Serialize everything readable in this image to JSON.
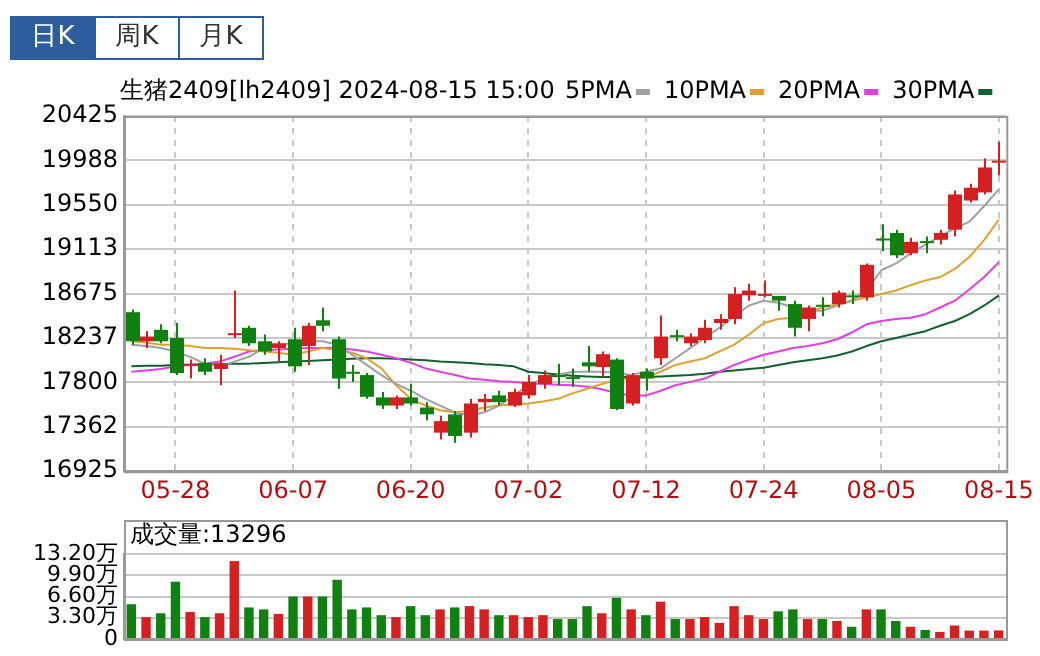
{
  "chart_data": [
    {
      "type": "candlestick",
      "title": "生猪2409[lh2409] 2024-08-15 15:00",
      "annotations": [
        "日K",
        "周K",
        "月K"
      ],
      "categories": [
        null,
        null,
        null,
        "05-28",
        null,
        null,
        null,
        null,
        null,
        null,
        null,
        "06-07",
        null,
        null,
        null,
        null,
        null,
        null,
        null,
        "06-20",
        null,
        null,
        null,
        null,
        null,
        null,
        null,
        "07-02",
        null,
        null,
        null,
        null,
        null,
        null,
        null,
        "07-12",
        null,
        null,
        null,
        null,
        null,
        null,
        null,
        "07-24",
        null,
        null,
        null,
        null,
        null,
        null,
        null,
        "08-05",
        null,
        null,
        null,
        null,
        null,
        null,
        null,
        "08-15"
      ],
      "ohlc": [
        [
          18492,
          18518,
          18172,
          18205
        ],
        [
          18205,
          18305,
          18138,
          18252
        ],
        [
          18318,
          18372,
          18185,
          18205
        ],
        [
          18238,
          18385,
          17872,
          17892
        ],
        [
          17965,
          18025,
          17838,
          17985
        ],
        [
          17992,
          18038,
          17872,
          17905
        ],
        [
          17932,
          18072,
          17772,
          17985
        ],
        [
          18272,
          18705,
          18238,
          18285
        ],
        [
          18338,
          18358,
          18158,
          18185
        ],
        [
          18205,
          18272,
          18072,
          18105
        ],
        [
          18138,
          18205,
          18005,
          18185
        ],
        [
          18225,
          18338,
          17905,
          17958
        ],
        [
          18158,
          18385,
          17972,
          18358
        ],
        [
          18412,
          18538,
          18305,
          18358
        ],
        [
          18225,
          18252,
          17738,
          17838
        ],
        [
          17905,
          17972,
          17805,
          17892
        ],
        [
          17872,
          17892,
          17638,
          17658
        ],
        [
          17652,
          17705,
          17538,
          17572
        ],
        [
          17572,
          17672,
          17538,
          17652
        ],
        [
          17652,
          17785,
          17572,
          17592
        ],
        [
          17552,
          17605,
          17425,
          17485
        ],
        [
          17305,
          17472,
          17238,
          17418
        ],
        [
          17485,
          17518,
          17205,
          17272
        ],
        [
          17305,
          17638,
          17258,
          17592
        ],
        [
          17605,
          17685,
          17518,
          17638
        ],
        [
          17672,
          17718,
          17572,
          17605
        ],
        [
          17572,
          17738,
          17558,
          17705
        ],
        [
          17672,
          17872,
          17638,
          17805
        ],
        [
          17785,
          17918,
          17738,
          17872
        ],
        [
          17872,
          17985,
          17772,
          17865
        ],
        [
          17852,
          17938,
          17758,
          17845
        ],
        [
          17998,
          18158,
          17905,
          17958
        ],
        [
          17952,
          18105,
          17852,
          18078
        ],
        [
          18025,
          18038,
          17525,
          17538
        ],
        [
          17592,
          17892,
          17572,
          17872
        ],
        [
          17905,
          17938,
          17718,
          17838
        ],
        [
          18038,
          18458,
          17972,
          18252
        ],
        [
          18265,
          18318,
          18205,
          18258
        ],
        [
          18185,
          18285,
          18158,
          18252
        ],
        [
          18218,
          18418,
          18185,
          18338
        ],
        [
          18385,
          18472,
          18318,
          18425
        ],
        [
          18425,
          18738,
          18372,
          18672
        ],
        [
          18658,
          18772,
          18605,
          18705
        ],
        [
          18665,
          18805,
          18638,
          18672
        ],
        [
          18652,
          18652,
          18505,
          18605
        ],
        [
          18572,
          18605,
          18252,
          18338
        ],
        [
          18425,
          18558,
          18305,
          18538
        ],
        [
          18565,
          18638,
          18452,
          18558
        ],
        [
          18572,
          18705,
          18538,
          18685
        ],
        [
          18658,
          18705,
          18572,
          18652
        ],
        [
          18638,
          18972,
          18605,
          18958
        ],
        [
          19218,
          19358,
          19092,
          19205
        ],
        [
          19272,
          19305,
          19025,
          19052
        ],
        [
          19072,
          19225,
          19052,
          19185
        ],
        [
          19192,
          19238,
          19072,
          19185
        ],
        [
          19205,
          19305,
          19158,
          19272
        ],
        [
          19305,
          19692,
          19238,
          19652
        ],
        [
          19592,
          19758,
          19572,
          19718
        ],
        [
          19672,
          20005,
          19652,
          19918
        ],
        [
          19972,
          20172,
          19838,
          19985
        ]
      ],
      "colors": [
        "#108010",
        "#d42020",
        "#108010",
        "#108010",
        "#d42020",
        "#108010",
        "#d42020",
        "#d42020",
        "#108010",
        "#108010",
        "#d42020",
        "#108010",
        "#d42020",
        "#108010",
        "#108010",
        "#108010",
        "#108010",
        "#108010",
        "#d42020",
        "#108010",
        "#108010",
        "#d42020",
        "#108010",
        "#d42020",
        "#d42020",
        "#108010",
        "#d42020",
        "#d42020",
        "#d42020",
        "#108010",
        "#108010",
        "#108010",
        "#d42020",
        "#108010",
        "#d42020",
        "#108010",
        "#d42020",
        "#108010",
        "#d42020",
        "#d42020",
        "#d42020",
        "#d42020",
        "#d42020",
        "#d42020",
        "#108010",
        "#108010",
        "#d42020",
        "#108010",
        "#d42020",
        "#108010",
        "#d42020",
        "#108010",
        "#108010",
        "#d42020",
        "#108010",
        "#d42020",
        "#d42020",
        "#d42020",
        "#d42020",
        "#d42020"
      ],
      "series": [
        {
          "name": "5PMA",
          "type": "line",
          "color": "#a0a0a0",
          "values": [
            18172,
            18158,
            18138,
            18105,
            18052,
            17985,
            17958,
            18005,
            18052,
            18138,
            18172,
            18185,
            18205,
            18205,
            18172,
            18072,
            17972,
            17872,
            17785,
            17718,
            17638,
            17572,
            17505,
            17472,
            17505,
            17572,
            17672,
            17772,
            17838,
            17872,
            17905,
            17905,
            17905,
            17892,
            17872,
            17905,
            17938,
            18038,
            18138,
            18238,
            18338,
            18452,
            18558,
            18605,
            18585,
            18538,
            18505,
            18505,
            18558,
            18605,
            18705,
            18905,
            18972,
            19072,
            19158,
            19238,
            19318,
            19385,
            19538,
            19705
          ]
        },
        {
          "name": "10PMA",
          "type": "line",
          "color": "#e0a030",
          "values": [
            18205,
            18192,
            18172,
            18172,
            18158,
            18138,
            18138,
            18132,
            18118,
            18105,
            18092,
            18072,
            18105,
            18138,
            18118,
            18092,
            18038,
            17938,
            17772,
            17638,
            17572,
            17525,
            17505,
            17518,
            17552,
            17572,
            17585,
            17592,
            17612,
            17638,
            17692,
            17738,
            17785,
            17825,
            17838,
            17852,
            17905,
            17972,
            18005,
            18038,
            18105,
            18172,
            18272,
            18385,
            18425,
            18438,
            18492,
            18538,
            18572,
            18605,
            18638,
            18672,
            18705,
            18758,
            18805,
            18838,
            18918,
            19038,
            19205,
            19405
          ]
        },
        {
          "name": "20PMA",
          "type": "line",
          "color": "#e040e0",
          "values": [
            17905,
            17918,
            17932,
            17958,
            17972,
            17985,
            18005,
            18052,
            18105,
            18118,
            18125,
            18132,
            18138,
            18138,
            18138,
            18125,
            18105,
            18072,
            18038,
            17992,
            17938,
            17905,
            17872,
            17838,
            17825,
            17812,
            17805,
            17792,
            17785,
            17778,
            17772,
            17758,
            17732,
            17692,
            17672,
            17672,
            17718,
            17772,
            17805,
            17838,
            17905,
            17972,
            18025,
            18072,
            18105,
            18138,
            18158,
            18185,
            18225,
            18292,
            18372,
            18405,
            18425,
            18438,
            18472,
            18538,
            18605,
            18718,
            18838,
            18985
          ]
        },
        {
          "name": "30PMA",
          "type": "line",
          "color": "#106030",
          "values": [
            17958,
            17965,
            17965,
            17972,
            17972,
            17978,
            17978,
            17985,
            17985,
            17992,
            17998,
            18005,
            18012,
            18018,
            18025,
            18032,
            18038,
            18038,
            18032,
            18025,
            18018,
            18005,
            17998,
            17992,
            17978,
            17972,
            17958,
            17905,
            17892,
            17878,
            17865,
            17858,
            17852,
            17852,
            17852,
            17852,
            17858,
            17865,
            17872,
            17885,
            17905,
            17918,
            17932,
            17945,
            17972,
            17998,
            18018,
            18038,
            18065,
            18105,
            18158,
            18205,
            18238,
            18272,
            18305,
            18358,
            18405,
            18472,
            18558,
            18658
          ]
        }
      ],
      "ylim": [
        16925,
        20425
      ],
      "yticks": [
        16925,
        17362,
        17800,
        18237,
        18675,
        19113,
        19550,
        19988,
        20425
      ],
      "grid": true,
      "legend": "top right"
    },
    {
      "type": "bar",
      "title": "成交量:13296",
      "categories": [
        null,
        null,
        null,
        null,
        null,
        null,
        null,
        null,
        null,
        null,
        null,
        null,
        null,
        null,
        null,
        null,
        null,
        null,
        null,
        null,
        null,
        null,
        null,
        null,
        null,
        null,
        null,
        null,
        null,
        null,
        null,
        null,
        null,
        null,
        null,
        null,
        null,
        null,
        null,
        null,
        null,
        null,
        null,
        null,
        null,
        null,
        null,
        null,
        null,
        null,
        null,
        null,
        null,
        null,
        null,
        null,
        null,
        null,
        null,
        null
      ],
      "values": [
        5.4,
        3.4,
        4.0,
        8.9,
        4.2,
        3.4,
        4.0,
        12.1,
        4.9,
        4.6,
        3.9,
        6.6,
        6.6,
        6.6,
        9.2,
        4.6,
        4.9,
        3.7,
        3.4,
        5.1,
        3.7,
        4.6,
        4.9,
        5.1,
        4.6,
        3.7,
        3.7,
        3.4,
        3.7,
        3.1,
        3.1,
        5.1,
        4.0,
        6.4,
        4.6,
        3.7,
        5.8,
        3.1,
        3.1,
        3.4,
        2.5,
        5.1,
        3.7,
        3.1,
        4.3,
        4.6,
        3.1,
        3.1,
        2.8,
        1.9,
        4.6,
        4.6,
        2.8,
        1.9,
        1.4,
        1.1,
        2.1,
        1.3,
        1.3,
        1.3296
      ],
      "colors": [
        "#108010",
        "#d42020",
        "#108010",
        "#108010",
        "#d42020",
        "#108010",
        "#d42020",
        "#d42020",
        "#108010",
        "#108010",
        "#d42020",
        "#108010",
        "#d42020",
        "#108010",
        "#108010",
        "#108010",
        "#108010",
        "#108010",
        "#d42020",
        "#108010",
        "#108010",
        "#d42020",
        "#108010",
        "#d42020",
        "#d42020",
        "#108010",
        "#d42020",
        "#d42020",
        "#d42020",
        "#108010",
        "#108010",
        "#108010",
        "#d42020",
        "#108010",
        "#d42020",
        "#108010",
        "#d42020",
        "#108010",
        "#d42020",
        "#d42020",
        "#d42020",
        "#d42020",
        "#d42020",
        "#d42020",
        "#108010",
        "#108010",
        "#d42020",
        "#108010",
        "#d42020",
        "#108010",
        "#d42020",
        "#108010",
        "#108010",
        "#d42020",
        "#108010",
        "#d42020",
        "#d42020",
        "#d42020",
        "#d42020",
        "#d42020"
      ],
      "ylim": [
        0,
        13.2
      ],
      "yticks": [
        0,
        {
          "value": 3.3,
          "label": "3.30万"
        },
        {
          "value": 6.6,
          "label": "6.60万"
        },
        {
          "value": 9.9,
          "label": "9.90万"
        },
        {
          "value": 13.2,
          "label": "13.20万"
        }
      ],
      "grid": true,
      "tick_labels": "y"
    }
  ]
}
